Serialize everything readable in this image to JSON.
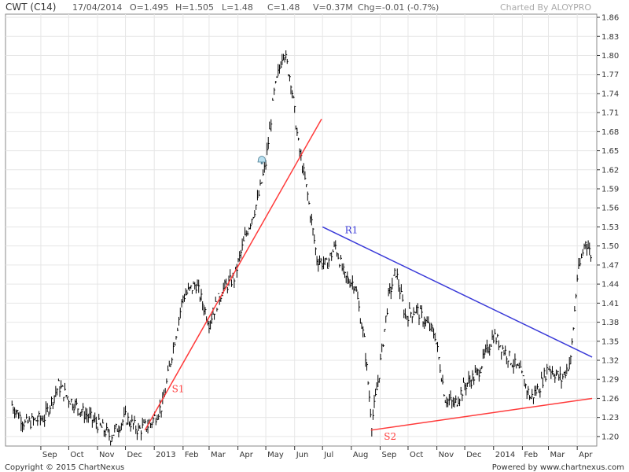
{
  "header": {
    "title": "CWT (C14)",
    "date": "17/04/2014",
    "open": "O=1.495",
    "high": "H=1.505",
    "low": "L=1.48",
    "close": "C=1.48",
    "volume": "V=0.37M",
    "change": "Chg=-0.01 (-0.7%)",
    "charted_by": "Charted By ALOYPRO"
  },
  "footer": {
    "copyright": "Copyright © 2015 ChartNexus",
    "powered": "Powered by www.chartnexus.com"
  },
  "colors": {
    "price": "#000000",
    "support": "#ff3b3b",
    "resistance": "#3a3ad8",
    "grid": "#e6e6e6",
    "axis": "#333333"
  },
  "chart_data": {
    "type": "ohlc-line",
    "y_tick_labels": [
      "1.20",
      "1.23",
      "1.26",
      "1.29",
      "1.32",
      "1.35",
      "1.38",
      "1.41",
      "1.44",
      "1.47",
      "1.50",
      "1.53",
      "1.56",
      "1.59",
      "1.62",
      "1.65",
      "1.68",
      "1.71",
      "1.74",
      "1.77",
      "1.80",
      "1.83",
      "1.86"
    ],
    "ylim": [
      1.185,
      1.865
    ],
    "x_tick_labels": [
      "Sep",
      "Oct",
      "Nov",
      "Dec",
      "2013",
      "Feb",
      "Mar",
      "Apr",
      "May",
      "Jun",
      "Jul",
      "Aug",
      "Sep",
      "Oct",
      "Nov",
      "Dec",
      "2014",
      "Feb",
      "Mar",
      "Apr"
    ],
    "price": {
      "x": [
        "2012-08-01",
        "2012-08-15",
        "2012-09-05",
        "2012-09-20",
        "2012-10-01",
        "2012-10-15",
        "2012-11-01",
        "2012-11-15",
        "2012-12-01",
        "2012-12-15",
        "2012-12-28",
        "2013-01-10",
        "2013-01-20",
        "2013-02-01",
        "2013-02-15",
        "2013-03-01",
        "2013-03-15",
        "2013-03-28",
        "2013-04-10",
        "2013-04-22",
        "2013-05-01",
        "2013-05-05",
        "2013-05-10",
        "2013-05-20",
        "2013-05-28",
        "2013-06-05",
        "2013-06-15",
        "2013-06-25",
        "2013-07-05",
        "2013-07-15",
        "2013-07-25",
        "2013-08-05",
        "2013-08-15",
        "2013-08-23",
        "2013-08-31",
        "2013-09-10",
        "2013-09-18",
        "2013-09-28",
        "2013-10-10",
        "2013-10-20",
        "2013-10-30",
        "2013-11-10",
        "2013-11-20",
        "2013-12-01",
        "2013-12-15",
        "2014-01-01",
        "2014-01-15",
        "2014-01-30",
        "2014-02-10",
        "2014-02-20",
        "2014-03-01",
        "2014-03-15",
        "2014-03-25",
        "2014-04-01",
        "2014-04-10",
        "2014-04-17"
      ],
      "close": [
        1.25,
        1.22,
        1.23,
        1.28,
        1.26,
        1.24,
        1.22,
        1.2,
        1.23,
        1.21,
        1.22,
        1.25,
        1.33,
        1.42,
        1.44,
        1.38,
        1.43,
        1.45,
        1.52,
        1.57,
        1.63,
        1.68,
        1.74,
        1.81,
        1.76,
        1.66,
        1.58,
        1.48,
        1.47,
        1.5,
        1.45,
        1.44,
        1.35,
        1.22,
        1.3,
        1.42,
        1.46,
        1.39,
        1.4,
        1.38,
        1.36,
        1.26,
        1.25,
        1.28,
        1.3,
        1.36,
        1.33,
        1.3,
        1.26,
        1.28,
        1.31,
        1.29,
        1.32,
        1.45,
        1.51,
        1.48
      ]
    },
    "trendlines": [
      {
        "name": "S1",
        "x": [
          "2012-12-22",
          "2013-06-30"
        ],
        "y": [
          1.21,
          1.7
        ]
      },
      {
        "name": "R1",
        "x": [
          "2013-07-01",
          "2014-04-17"
        ],
        "y": [
          1.53,
          1.325
        ]
      },
      {
        "name": "S2",
        "x": [
          "2013-08-22",
          "2014-04-17"
        ],
        "y": [
          1.21,
          1.26
        ]
      }
    ],
    "annotations": [
      {
        "text": "S1",
        "x": "2013-01-20",
        "y": 1.27
      },
      {
        "text": "R1",
        "x": "2013-07-25",
        "y": 1.52
      },
      {
        "text": "S2",
        "x": "2013-09-05",
        "y": 1.195
      }
    ],
    "grid": true
  }
}
